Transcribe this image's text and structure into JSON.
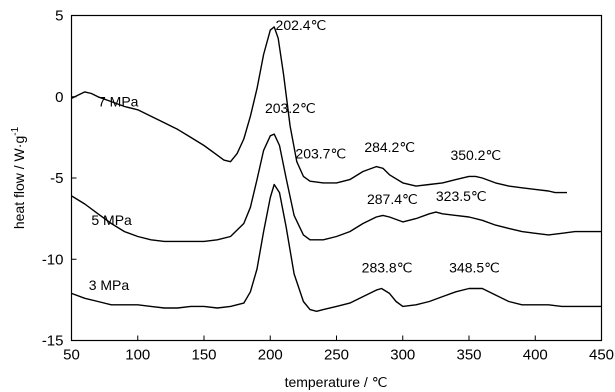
{
  "chart_data": {
    "type": "line",
    "xlabel": "temperature / ℃",
    "ylabel_parts": {
      "main": "heat flow / W·g",
      "sup": "-1"
    },
    "xlim": [
      50,
      450
    ],
    "ylim": [
      -15,
      5
    ],
    "x_ticks": [
      50,
      100,
      150,
      200,
      250,
      300,
      350,
      400,
      450
    ],
    "y_ticks": [
      5,
      0,
      -5,
      -10,
      -15
    ],
    "grid": false,
    "line_color": "#000000",
    "series": [
      {
        "name": "7 MPa",
        "points": [
          [
            50,
            -0.1
          ],
          [
            55,
            0.1
          ],
          [
            60,
            0.3
          ],
          [
            65,
            0.2
          ],
          [
            70,
            0.0
          ],
          [
            80,
            -0.3
          ],
          [
            90,
            -0.6
          ],
          [
            100,
            -0.8
          ],
          [
            110,
            -1.2
          ],
          [
            120,
            -1.6
          ],
          [
            130,
            -2.0
          ],
          [
            140,
            -2.5
          ],
          [
            150,
            -3.0
          ],
          [
            160,
            -3.6
          ],
          [
            165,
            -3.9
          ],
          [
            170,
            -4.0
          ],
          [
            175,
            -3.5
          ],
          [
            180,
            -2.6
          ],
          [
            185,
            -1.2
          ],
          [
            190,
            0.5
          ],
          [
            195,
            2.6
          ],
          [
            200,
            4.1
          ],
          [
            203,
            4.3
          ],
          [
            206,
            3.6
          ],
          [
            210,
            1.4
          ],
          [
            215,
            -1.8
          ],
          [
            220,
            -4.0
          ],
          [
            225,
            -4.9
          ],
          [
            230,
            -5.2
          ],
          [
            240,
            -5.3
          ],
          [
            250,
            -5.3
          ],
          [
            260,
            -5.1
          ],
          [
            270,
            -4.6
          ],
          [
            280,
            -4.3
          ],
          [
            285,
            -4.4
          ],
          [
            290,
            -4.8
          ],
          [
            300,
            -5.3
          ],
          [
            310,
            -5.5
          ],
          [
            320,
            -5.4
          ],
          [
            330,
            -5.3
          ],
          [
            340,
            -5.1
          ],
          [
            350,
            -4.9
          ],
          [
            355,
            -4.9
          ],
          [
            360,
            -5.0
          ],
          [
            370,
            -5.3
          ],
          [
            380,
            -5.5
          ],
          [
            390,
            -5.6
          ],
          [
            400,
            -5.7
          ],
          [
            410,
            -5.8
          ],
          [
            415,
            -5.9
          ],
          [
            420,
            -5.9
          ],
          [
            424,
            -5.9
          ]
        ]
      },
      {
        "name": "5 MPa",
        "points": [
          [
            50,
            -6.1
          ],
          [
            60,
            -6.6
          ],
          [
            70,
            -7.2
          ],
          [
            80,
            -7.8
          ],
          [
            90,
            -8.3
          ],
          [
            100,
            -8.6
          ],
          [
            110,
            -8.8
          ],
          [
            120,
            -8.9
          ],
          [
            130,
            -8.9
          ],
          [
            140,
            -8.9
          ],
          [
            150,
            -8.9
          ],
          [
            160,
            -8.8
          ],
          [
            170,
            -8.6
          ],
          [
            180,
            -7.8
          ],
          [
            185,
            -6.8
          ],
          [
            190,
            -5.1
          ],
          [
            195,
            -3.3
          ],
          [
            200,
            -2.4
          ],
          [
            203,
            -2.3
          ],
          [
            207,
            -3.0
          ],
          [
            212,
            -5.0
          ],
          [
            218,
            -7.3
          ],
          [
            225,
            -8.5
          ],
          [
            230,
            -8.8
          ],
          [
            240,
            -8.8
          ],
          [
            250,
            -8.6
          ],
          [
            260,
            -8.3
          ],
          [
            270,
            -7.8
          ],
          [
            280,
            -7.4
          ],
          [
            285,
            -7.3
          ],
          [
            290,
            -7.4
          ],
          [
            300,
            -7.7
          ],
          [
            310,
            -7.5
          ],
          [
            320,
            -7.2
          ],
          [
            325,
            -7.1
          ],
          [
            330,
            -7.2
          ],
          [
            340,
            -7.3
          ],
          [
            350,
            -7.4
          ],
          [
            360,
            -7.6
          ],
          [
            370,
            -7.9
          ],
          [
            380,
            -8.1
          ],
          [
            390,
            -8.3
          ],
          [
            400,
            -8.4
          ],
          [
            410,
            -8.5
          ],
          [
            420,
            -8.4
          ],
          [
            430,
            -8.3
          ],
          [
            440,
            -8.3
          ],
          [
            450,
            -8.3
          ]
        ]
      },
      {
        "name": "3 MPa",
        "points": [
          [
            50,
            -12.1
          ],
          [
            60,
            -12.4
          ],
          [
            70,
            -12.6
          ],
          [
            80,
            -12.8
          ],
          [
            90,
            -12.8
          ],
          [
            100,
            -12.8
          ],
          [
            110,
            -12.9
          ],
          [
            120,
            -13.0
          ],
          [
            130,
            -13.0
          ],
          [
            140,
            -12.9
          ],
          [
            150,
            -12.9
          ],
          [
            160,
            -13.0
          ],
          [
            170,
            -12.9
          ],
          [
            180,
            -12.7
          ],
          [
            185,
            -12.0
          ],
          [
            190,
            -10.6
          ],
          [
            195,
            -8.3
          ],
          [
            200,
            -6.2
          ],
          [
            203,
            -5.4
          ],
          [
            207,
            -5.9
          ],
          [
            212,
            -8.0
          ],
          [
            218,
            -10.9
          ],
          [
            225,
            -12.6
          ],
          [
            230,
            -13.1
          ],
          [
            235,
            -13.2
          ],
          [
            240,
            -13.1
          ],
          [
            250,
            -12.9
          ],
          [
            260,
            -12.7
          ],
          [
            270,
            -12.3
          ],
          [
            280,
            -11.9
          ],
          [
            284,
            -11.8
          ],
          [
            290,
            -12.1
          ],
          [
            295,
            -12.6
          ],
          [
            300,
            -12.9
          ],
          [
            310,
            -12.8
          ],
          [
            320,
            -12.6
          ],
          [
            330,
            -12.3
          ],
          [
            340,
            -12.0
          ],
          [
            350,
            -11.8
          ],
          [
            355,
            -11.8
          ],
          [
            360,
            -11.8
          ],
          [
            370,
            -12.2
          ],
          [
            380,
            -12.6
          ],
          [
            390,
            -12.8
          ],
          [
            400,
            -12.8
          ],
          [
            410,
            -12.8
          ],
          [
            420,
            -12.9
          ],
          [
            430,
            -12.9
          ],
          [
            440,
            -12.9
          ],
          [
            450,
            -12.9
          ]
        ]
      }
    ],
    "annotations": [
      {
        "text": "202.4℃",
        "x": 204,
        "y": 4.1
      },
      {
        "text": "203.2℃",
        "x": 196,
        "y": -1.0
      },
      {
        "text": "203.7℃",
        "x": 219,
        "y": -3.8
      },
      {
        "text": "284.2℃",
        "x": 271,
        "y": -3.4
      },
      {
        "text": "350.2℃",
        "x": 336,
        "y": -3.9
      },
      {
        "text": "287.4℃",
        "x": 273,
        "y": -6.6
      },
      {
        "text": "323.5℃",
        "x": 325,
        "y": -6.4
      },
      {
        "text": "283.8℃",
        "x": 269,
        "y": -10.8
      },
      {
        "text": "348.5℃",
        "x": 335,
        "y": -10.8
      },
      {
        "text": "7 MPa",
        "x": 70,
        "y": -0.6
      },
      {
        "text": "5 MPa",
        "x": 65,
        "y": -7.9
      },
      {
        "text": "3 MPa",
        "x": 63,
        "y": -11.9
      }
    ]
  }
}
